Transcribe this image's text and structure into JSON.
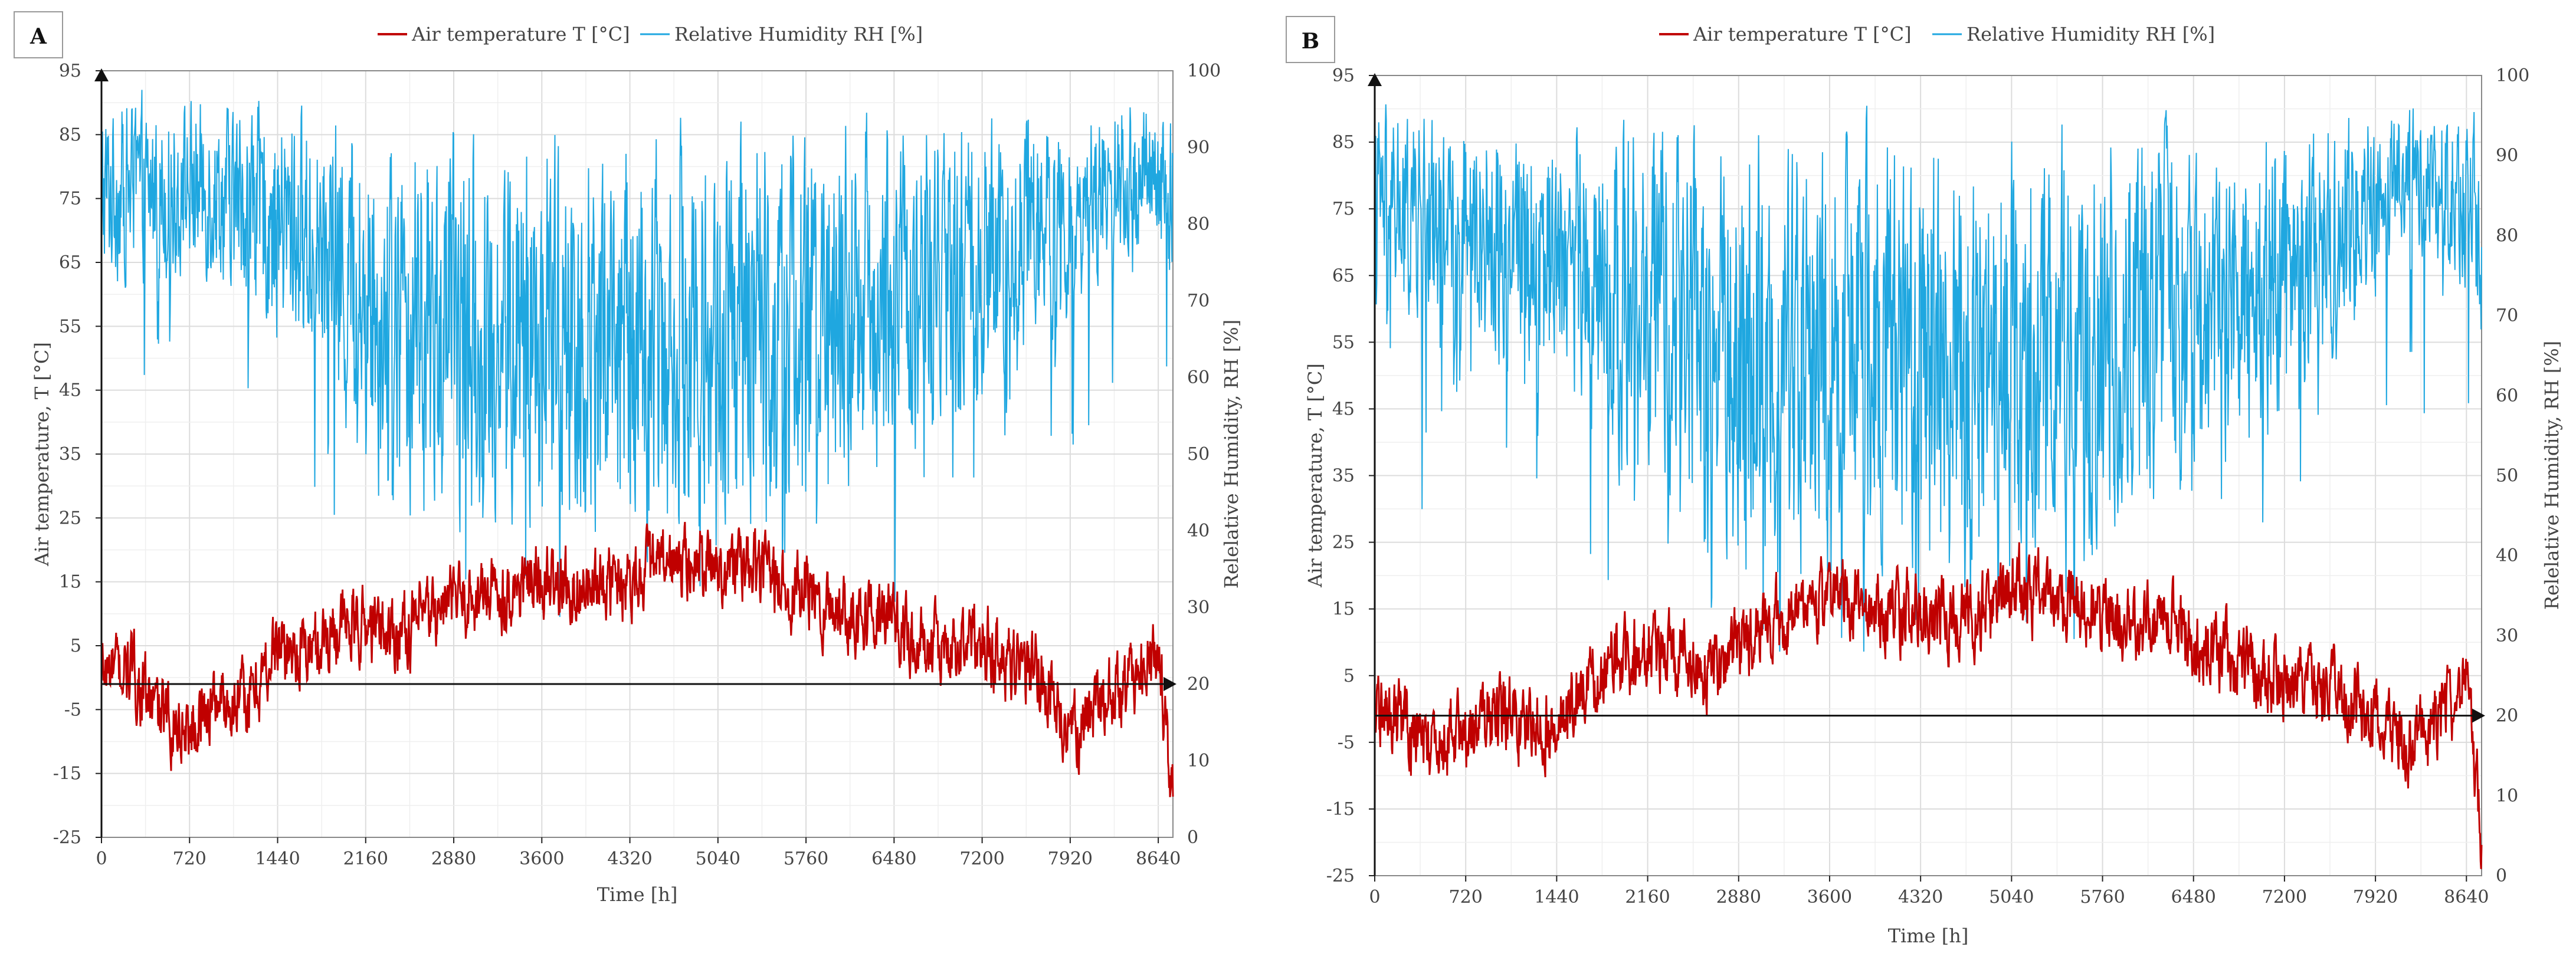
{
  "colors": {
    "temperature": "#c00000",
    "humidity": "#1fa7e0",
    "grid": "#e3e3e3",
    "axis": "#222222"
  },
  "chart_data": [
    {
      "type": "line",
      "panel": "A",
      "xlabel": "Time [h]",
      "ylabel": "Air temperature, T [°C]",
      "y2label": "Relelative Humidity, RH [%]",
      "xlim": [
        0,
        8760
      ],
      "ylim": [
        -25,
        95
      ],
      "y2lim": [
        0,
        100
      ],
      "x_ticks": [
        "0",
        "720",
        "1440",
        "2160",
        "2880",
        "3600",
        "4320",
        "5040",
        "5760",
        "6480",
        "7200",
        "7920",
        "8640"
      ],
      "y_ticks": [
        "-25",
        "-15",
        "-5",
        "5",
        "15",
        "25",
        "35",
        "45",
        "55",
        "65",
        "75",
        "85",
        "95"
      ],
      "y2_ticks": [
        "0",
        "10",
        "20",
        "30",
        "40",
        "50",
        "60",
        "70",
        "80",
        "90",
        "100"
      ],
      "grid": true,
      "legend_position": "top-center",
      "series": [
        {
          "name": "Air temperature T [°C]",
          "axis": "left",
          "x": [
            0,
            240,
            480,
            720,
            960,
            1200,
            1440,
            1680,
            1920,
            2160,
            2400,
            2640,
            2880,
            3120,
            3360,
            3600,
            3840,
            4080,
            4320,
            4560,
            4800,
            5040,
            5280,
            5520,
            5760,
            6000,
            6240,
            6480,
            6720,
            6960,
            7200,
            7440,
            7680,
            7920,
            8160,
            8400,
            8640,
            8760
          ],
          "values": [
            1,
            1,
            -6,
            -8,
            -3,
            -4,
            5,
            4,
            8,
            8,
            7,
            9,
            12,
            13,
            14,
            15,
            14,
            14,
            16,
            17,
            18,
            18,
            17,
            15,
            13,
            11,
            10,
            9,
            5,
            4,
            6,
            2,
            0,
            -10,
            -3,
            -1,
            3,
            -17
          ]
        },
        {
          "name": "Relative Humidity RH [%]",
          "axis": "right",
          "x": [
            0,
            240,
            480,
            720,
            960,
            1200,
            1440,
            1680,
            1920,
            2160,
            2400,
            2640,
            2880,
            3120,
            3360,
            3600,
            3840,
            4080,
            4320,
            4560,
            4800,
            5040,
            5280,
            5520,
            5760,
            6000,
            6240,
            6480,
            6720,
            6960,
            7200,
            7440,
            7680,
            7920,
            8160,
            8400,
            8640,
            8760
          ],
          "values": [
            84,
            85,
            84,
            85,
            84,
            83,
            80,
            78,
            74,
            70,
            68,
            66,
            66,
            66,
            65,
            66,
            65,
            66,
            66,
            66,
            66,
            65,
            66,
            67,
            67,
            70,
            70,
            73,
            72,
            73,
            75,
            78,
            80,
            82,
            84,
            85,
            86,
            84
          ]
        }
      ]
    },
    {
      "type": "line",
      "panel": "B",
      "xlabel": "Time [h]",
      "ylabel": "Air temperature, T [°C]",
      "y2label": "Relelative Humidity, RH [%]",
      "xlim": [
        0,
        8760
      ],
      "ylim": [
        -25,
        95
      ],
      "y2lim": [
        0,
        100
      ],
      "x_ticks": [
        "0",
        "720",
        "1440",
        "2160",
        "2880",
        "3600",
        "4320",
        "5040",
        "5760",
        "6480",
        "7200",
        "7920",
        "8640"
      ],
      "y_ticks": [
        "-25",
        "-15",
        "-5",
        "5",
        "15",
        "25",
        "35",
        "45",
        "55",
        "65",
        "75",
        "85",
        "95"
      ],
      "y2_ticks": [
        "0",
        "10",
        "20",
        "30",
        "40",
        "50",
        "60",
        "70",
        "80",
        "90",
        "100"
      ],
      "grid": true,
      "legend_position": "top-center",
      "series": [
        {
          "name": "Air temperature T [°C]",
          "axis": "left",
          "x": [
            0,
            240,
            480,
            720,
            960,
            1200,
            1440,
            1680,
            1920,
            2160,
            2400,
            2640,
            2880,
            3120,
            3360,
            3600,
            3840,
            4080,
            4320,
            4560,
            4800,
            5040,
            5280,
            5520,
            5760,
            6000,
            6240,
            6480,
            6720,
            6960,
            7200,
            7440,
            7680,
            7920,
            8160,
            8400,
            8640,
            8760
          ],
          "values": [
            0,
            -3,
            -6,
            -3,
            -1,
            -2,
            -2,
            3,
            7,
            9,
            7,
            6,
            9,
            12,
            15,
            17,
            16,
            15,
            15,
            14,
            14,
            18,
            17,
            16,
            15,
            12,
            13,
            11,
            8,
            6,
            4,
            3,
            2,
            -3,
            -5,
            -3,
            5,
            -20
          ]
        },
        {
          "name": "Relative Humidity RH [%]",
          "axis": "right",
          "x": [
            0,
            240,
            480,
            720,
            960,
            1200,
            1440,
            1680,
            1920,
            2160,
            2400,
            2640,
            2880,
            3120,
            3360,
            3600,
            3840,
            4080,
            4320,
            4560,
            4800,
            5040,
            5280,
            5520,
            5760,
            6000,
            6240,
            6480,
            6720,
            6960,
            7200,
            7440,
            7680,
            7920,
            8160,
            8400,
            8640,
            8760
          ],
          "values": [
            84,
            83,
            82,
            82,
            80,
            80,
            79,
            76,
            73,
            70,
            68,
            66,
            65,
            65,
            65,
            66,
            65,
            66,
            65,
            65,
            64,
            65,
            65,
            66,
            67,
            69,
            70,
            72,
            73,
            74,
            76,
            78,
            81,
            85,
            88,
            87,
            85,
            82
          ]
        }
      ]
    }
  ]
}
